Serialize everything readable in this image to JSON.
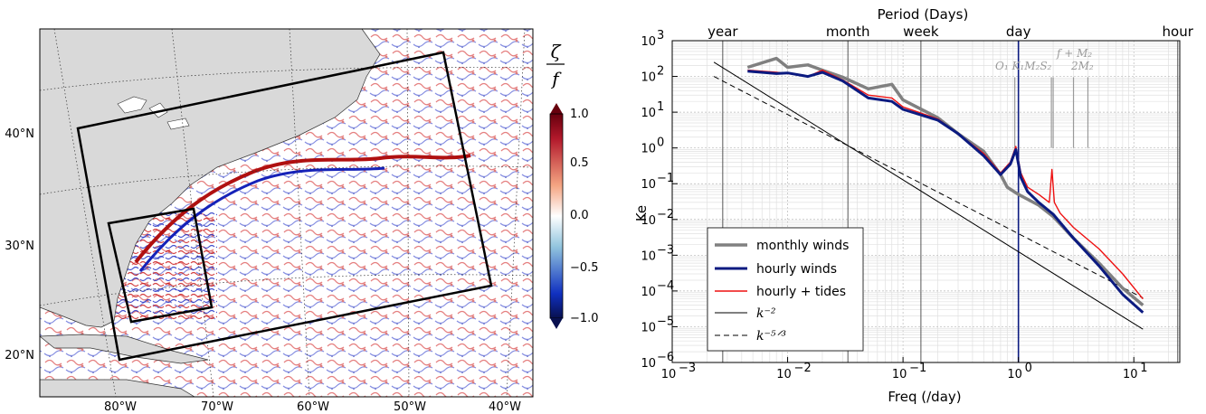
{
  "chart_data": [
    {
      "type": "heatmap",
      "title": "",
      "colorbar": {
        "label_num": "ζ",
        "label_den": "f",
        "ticks": [
          "1.0",
          "0.5",
          "0.0",
          "−0.5",
          "−1.0"
        ],
        "range": [
          -1.0,
          1.0
        ],
        "colors": {
          "max": "#67000d",
          "high": "#cc1010",
          "zero": "#ffffff",
          "low": "#1020c0",
          "min": "#08104f"
        }
      },
      "lon_ticks": [
        "80°W",
        "70°W",
        "60°W",
        "50°W",
        "40°W"
      ],
      "lat_ticks": [
        "40°N",
        "30°N",
        "20°N"
      ],
      "land_color": "#d9d9d9",
      "domains": [
        "outer-domain",
        "inner-domain"
      ]
    },
    {
      "type": "line",
      "xscale": "log",
      "yscale": "log",
      "xlim": [
        0.001,
        25
      ],
      "ylim": [
        1e-06,
        1000
      ],
      "xlabel": "Freq (/day)",
      "ylabel": "Ke",
      "top_axis_label": "Period (Days)",
      "x_ticks": [
        {
          "base": "10",
          "exp": "−3"
        },
        {
          "base": "10",
          "exp": "−2"
        },
        {
          "base": "10",
          "exp": "−1"
        },
        {
          "base": "10",
          "exp": "0"
        },
        {
          "base": "10",
          "exp": "1"
        }
      ],
      "y_ticks": [
        {
          "base": "10",
          "exp": "−6"
        },
        {
          "base": "10",
          "exp": "−5"
        },
        {
          "base": "10",
          "exp": "−4"
        },
        {
          "base": "10",
          "exp": "−3"
        },
        {
          "base": "10",
          "exp": "−2"
        },
        {
          "base": "10",
          "exp": "−1"
        },
        {
          "base": "10",
          "exp": "0"
        },
        {
          "base": "10",
          "exp": "1"
        },
        {
          "base": "10",
          "exp": "2"
        },
        {
          "base": "10",
          "exp": "3"
        }
      ],
      "period_markers": [
        {
          "label": "year",
          "freq": 0.00274
        },
        {
          "label": "month",
          "freq": 0.0333
        },
        {
          "label": "week",
          "freq": 0.1429
        },
        {
          "label": "day",
          "freq": 1.0
        },
        {
          "label": "hour",
          "freq": 24.0
        }
      ],
      "tidal_labels": {
        "upper": "f + M₂",
        "lower_a": "O₁ K₁M₂S₂",
        "lower_b": "2M₂"
      },
      "grid": true,
      "legend_position": "lower-left",
      "series": [
        {
          "name": "monthly winds",
          "color": "#808080",
          "width": 3.5,
          "x": [
            0.0045,
            0.008,
            0.01,
            0.015,
            0.02,
            0.03,
            0.05,
            0.08,
            0.1,
            0.2,
            0.3,
            0.5,
            0.7,
            0.8,
            1.0,
            1.5,
            2.0,
            3.0,
            5.0,
            8.0,
            12.0
          ],
          "y": [
            180,
            320,
            180,
            210,
            150,
            95,
            45,
            60,
            22,
            7,
            2.5,
            0.8,
            0.18,
            0.08,
            0.05,
            0.025,
            0.012,
            0.003,
            0.0006,
            0.00012,
            4e-05
          ]
        },
        {
          "name": "hourly winds",
          "color": "#0b1a80",
          "width": 3.0,
          "x": [
            0.0045,
            0.008,
            0.01,
            0.015,
            0.02,
            0.03,
            0.05,
            0.08,
            0.1,
            0.2,
            0.3,
            0.5,
            0.7,
            0.85,
            0.95,
            1.05,
            1.2,
            1.5,
            2.0,
            3.0,
            5.0,
            8.0,
            12.0
          ],
          "y": [
            140,
            120,
            125,
            100,
            130,
            75,
            25,
            20,
            12,
            6,
            2.5,
            0.6,
            0.18,
            0.35,
            0.9,
            0.15,
            0.06,
            0.03,
            0.014,
            0.003,
            0.0005,
            8e-05,
            2.5e-05
          ]
        },
        {
          "name": "hourly + tides",
          "color": "#ee1111",
          "width": 1.4,
          "x": [
            0.0045,
            0.008,
            0.01,
            0.015,
            0.02,
            0.03,
            0.05,
            0.08,
            0.1,
            0.2,
            0.3,
            0.5,
            0.7,
            0.85,
            0.95,
            1.05,
            1.2,
            1.5,
            1.85,
            1.95,
            2.05,
            2.3,
            3.0,
            5.0,
            8.0,
            12.0
          ],
          "y": [
            150,
            130,
            120,
            100,
            150,
            80,
            30,
            25,
            14,
            6.5,
            2.5,
            0.7,
            0.2,
            0.4,
            1.1,
            0.2,
            0.08,
            0.05,
            0.03,
            0.25,
            0.03,
            0.015,
            0.006,
            0.0015,
            0.0003,
            6e-05
          ]
        },
        {
          "name": "k⁻²",
          "color": "#000000",
          "width": 1.0,
          "dash": "",
          "x": [
            0.0023,
            12.0
          ],
          "y": [
            250,
            8.5e-06
          ]
        },
        {
          "name": "k⁻⁵ᐟ³",
          "color": "#000000",
          "width": 1.0,
          "dash": "6,4",
          "x": [
            0.0023,
            12.0
          ],
          "y": [
            100,
            6.4e-05
          ]
        }
      ]
    }
  ]
}
